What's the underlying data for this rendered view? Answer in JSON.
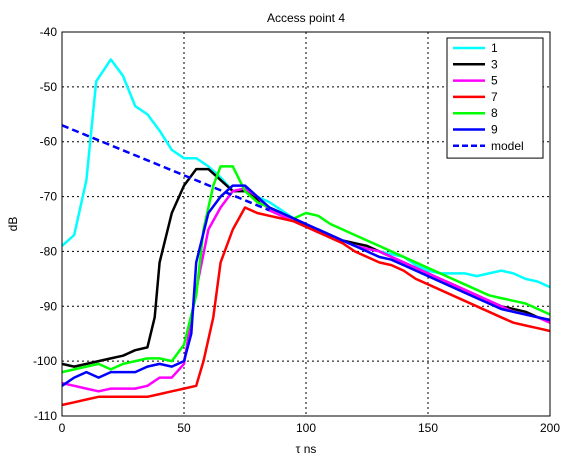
{
  "chart_data": {
    "type": "line",
    "title": "Access point 4",
    "xlabel": "τ ns",
    "ylabel": "dB",
    "xlim": [
      0,
      200
    ],
    "ylim": [
      -110,
      -40
    ],
    "xticks": [
      0,
      50,
      100,
      150,
      200
    ],
    "yticks": [
      -40,
      -50,
      -60,
      -70,
      -80,
      -90,
      -100,
      -110
    ],
    "grid": true,
    "legend_position": "top-right",
    "series": [
      {
        "name": "1",
        "color": "#00ffff",
        "dashed": false,
        "x": [
          0,
          5,
          10,
          14,
          20,
          25,
          30,
          35,
          40,
          45,
          50,
          55,
          60,
          65,
          70,
          75,
          80,
          85,
          90,
          95,
          100,
          105,
          110,
          115,
          120,
          125,
          130,
          135,
          140,
          145,
          150,
          155,
          160,
          165,
          170,
          175,
          180,
          185,
          190,
          195,
          200
        ],
        "y": [
          -79,
          -77,
          -67,
          -49,
          -45,
          -48,
          -53.5,
          -55,
          -58,
          -61.5,
          -63,
          -63,
          -64.5,
          -66.5,
          -69,
          -69,
          -70,
          -71,
          -72.5,
          -74,
          -75.5,
          -76,
          -77,
          -78,
          -79,
          -79.5,
          -80,
          -80.5,
          -81,
          -82.5,
          -83.5,
          -84,
          -84,
          -84,
          -84.5,
          -84,
          -83.5,
          -84,
          -85,
          -85.5,
          -86.5
        ]
      },
      {
        "name": "3",
        "color": "#000000",
        "dashed": false,
        "x": [
          0,
          5,
          10,
          15,
          20,
          25,
          30,
          35,
          38,
          40,
          45,
          50,
          55,
          60,
          65,
          70,
          75,
          80,
          85,
          90,
          95,
          100,
          105,
          110,
          115,
          120,
          125,
          130,
          135,
          140,
          145,
          150,
          155,
          160,
          165,
          170,
          175,
          180,
          185,
          190,
          195,
          200
        ],
        "y": [
          -100.5,
          -101,
          -100.5,
          -100,
          -99.5,
          -99,
          -98,
          -97.5,
          -92,
          -82,
          -73,
          -68,
          -65,
          -65,
          -67,
          -69,
          -69,
          -70.5,
          -72,
          -73,
          -74,
          -75.5,
          -76,
          -77,
          -78,
          -78.5,
          -79,
          -80,
          -81,
          -82,
          -83,
          -84,
          -85,
          -86,
          -87,
          -88,
          -89,
          -90,
          -90.5,
          -91,
          -92,
          -92.5
        ]
      },
      {
        "name": "5",
        "color": "#ff00ff",
        "dashed": false,
        "x": [
          0,
          5,
          10,
          15,
          20,
          25,
          30,
          35,
          40,
          45,
          50,
          52,
          55,
          60,
          65,
          70,
          75,
          80,
          85,
          90,
          95,
          100,
          105,
          110,
          115,
          120,
          125,
          130,
          135,
          140,
          145,
          150,
          155,
          160,
          165,
          170,
          175,
          180,
          185,
          190,
          195,
          200
        ],
        "y": [
          -104,
          -104.5,
          -105,
          -105.5,
          -105,
          -105,
          -105,
          -104.5,
          -103,
          -103,
          -100.5,
          -95,
          -87,
          -76,
          -72,
          -69,
          -68.5,
          -70,
          -72.5,
          -73.5,
          -74.5,
          -75.5,
          -76.5,
          -77,
          -78,
          -79,
          -79.5,
          -80,
          -81,
          -82,
          -83,
          -84,
          -85,
          -86,
          -87,
          -88,
          -89,
          -90,
          -91,
          -91.5,
          -92,
          -93
        ]
      },
      {
        "name": "7",
        "color": "#ff0000",
        "dashed": false,
        "x": [
          0,
          5,
          10,
          15,
          20,
          25,
          30,
          35,
          40,
          45,
          50,
          55,
          58,
          62,
          65,
          70,
          75,
          80,
          85,
          90,
          95,
          100,
          105,
          110,
          115,
          120,
          125,
          130,
          135,
          140,
          145,
          150,
          155,
          160,
          165,
          170,
          175,
          180,
          185,
          190,
          195,
          200
        ],
        "y": [
          -108,
          -107.5,
          -107,
          -106.5,
          -106.5,
          -106.5,
          -106.5,
          -106.5,
          -106,
          -105.5,
          -105,
          -104.5,
          -100,
          -92,
          -82,
          -76,
          -72,
          -73,
          -73.5,
          -74,
          -74.5,
          -75.5,
          -76.5,
          -77.5,
          -78.5,
          -80,
          -81,
          -82,
          -82.5,
          -83.5,
          -85,
          -86,
          -87,
          -88,
          -89,
          -90,
          -91,
          -92,
          -93,
          -93.5,
          -94,
          -94.5
        ]
      },
      {
        "name": "8",
        "color": "#00ff00",
        "dashed": false,
        "x": [
          0,
          5,
          10,
          15,
          20,
          25,
          30,
          35,
          40,
          45,
          50,
          55,
          58,
          62,
          65,
          70,
          75,
          80,
          85,
          90,
          95,
          100,
          105,
          110,
          115,
          120,
          125,
          130,
          135,
          140,
          145,
          150,
          155,
          160,
          165,
          170,
          175,
          180,
          185,
          190,
          195,
          200
        ],
        "y": [
          -102,
          -101.5,
          -101,
          -100.5,
          -101.5,
          -100.5,
          -100,
          -99.5,
          -99.5,
          -100,
          -97,
          -88,
          -76,
          -68,
          -64.5,
          -64.5,
          -69,
          -71,
          -72,
          -73,
          -74,
          -73,
          -73.5,
          -75,
          -76,
          -77,
          -78,
          -79,
          -80,
          -81,
          -82,
          -83,
          -84,
          -85,
          -86,
          -87,
          -88,
          -88.5,
          -89,
          -89.5,
          -90.5,
          -91.5
        ]
      },
      {
        "name": "9",
        "color": "#0000ff",
        "dashed": false,
        "x": [
          0,
          5,
          10,
          15,
          20,
          25,
          30,
          35,
          40,
          45,
          50,
          53,
          55,
          60,
          65,
          70,
          75,
          80,
          85,
          90,
          95,
          100,
          105,
          110,
          115,
          120,
          125,
          130,
          135,
          140,
          145,
          150,
          155,
          160,
          165,
          170,
          175,
          180,
          185,
          190,
          195,
          200
        ],
        "y": [
          -104.5,
          -103,
          -102,
          -103,
          -102,
          -102,
          -102,
          -101,
          -100.5,
          -101,
          -100,
          -95,
          -82,
          -73,
          -70,
          -68,
          -68,
          -70,
          -72,
          -73,
          -74,
          -75,
          -76,
          -77,
          -78,
          -79,
          -80,
          -81,
          -81.5,
          -82.5,
          -83.5,
          -84.5,
          -85.5,
          -86.5,
          -87.5,
          -88.5,
          -89.5,
          -90.5,
          -91,
          -91.5,
          -92,
          -92.5
        ]
      },
      {
        "name": "model",
        "color": "#0000ff",
        "dashed": true,
        "x": [
          0,
          85
        ],
        "y": [
          -57,
          -72.5
        ]
      }
    ]
  }
}
